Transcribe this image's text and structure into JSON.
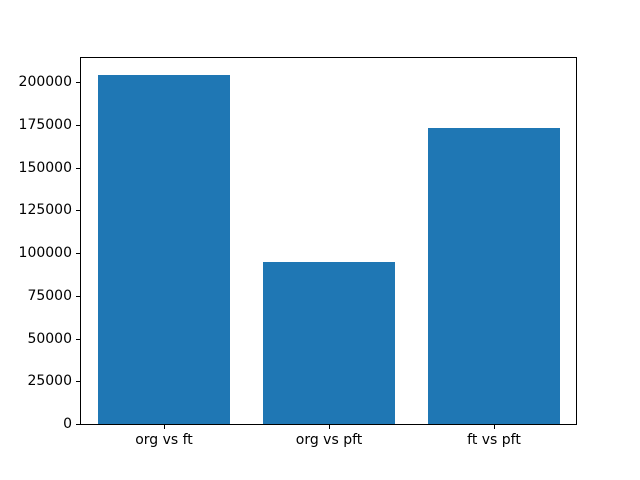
{
  "chart_data": {
    "type": "bar",
    "categories": [
      "org vs ft",
      "org vs pft",
      "ft vs pft"
    ],
    "values": [
      204000,
      95000,
      173000
    ],
    "yticks": [
      0,
      25000,
      50000,
      75000,
      100000,
      125000,
      150000,
      175000,
      200000
    ],
    "ylim": [
      0,
      214200
    ],
    "xlabel": "",
    "ylabel": "",
    "bar_color": "#1f77b4",
    "spine_color": "#000000",
    "background_color": "#ffffff",
    "grid": false,
    "legend": "none",
    "bar_width_fraction": 0.8
  }
}
